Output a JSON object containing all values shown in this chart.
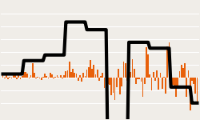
{
  "monthly_returns": [
    0.4,
    -0.1,
    0.5,
    -0.3,
    0.1,
    -0.2,
    0.5,
    0.4,
    -0.3,
    0.3,
    -0.3,
    0.2,
    0.9,
    0.9,
    0.6,
    -0.2,
    0.3,
    2.2,
    0.7,
    -0.1,
    0.1,
    -0.1,
    -0.4,
    0.1,
    0.6,
    0.2,
    -0.1,
    0.8,
    0.5,
    -0.1,
    0.1,
    0.4,
    0.1,
    0.3,
    -0.1,
    0.4,
    1.0,
    1.1,
    2.5,
    0.9,
    1.4,
    0.8,
    0.6,
    -0.5,
    0.4,
    -0.6,
    0.7,
    0.2,
    1.3,
    1.6,
    2.8,
    1.4,
    2.0,
    0.5,
    1.2,
    -0.5,
    0.2,
    0.8,
    -1.6,
    0.2,
    -1.0,
    -1.1,
    -2.8,
    -2.4,
    -3.5,
    -1.5,
    1.4,
    -2.6,
    -1.4,
    2.5,
    2.3,
    -0.5,
    0.5,
    0.9,
    2.9,
    1.4,
    -1.0,
    -0.3,
    -0.3,
    -0.7,
    -3.0,
    -1.0,
    4.8,
    3.6,
    0.5,
    -2.0,
    0.9,
    -0.5,
    1.1,
    -1.9,
    0.8,
    -1.8,
    0.1,
    -2.5,
    4.9,
    5.5,
    -0.3,
    -1.1,
    -1.4,
    -3.0,
    -1.4,
    1.0,
    2.0,
    1.5,
    2.3,
    -3.0,
    1.1,
    -5.2,
    -0.5,
    -1.0,
    -2.5,
    -4.0
  ],
  "annual_returns": [
    0.55,
    0.55,
    0.55,
    0.55,
    0.55,
    0.55,
    0.55,
    0.55,
    0.55,
    0.55,
    0.55,
    0.55,
    2.65,
    2.65,
    2.65,
    2.65,
    2.65,
    2.65,
    2.65,
    2.65,
    2.65,
    2.65,
    2.65,
    2.65,
    3.54,
    3.54,
    3.54,
    3.54,
    3.54,
    3.54,
    3.54,
    3.54,
    3.54,
    3.54,
    3.54,
    3.54,
    8.72,
    8.72,
    8.72,
    8.72,
    8.72,
    8.72,
    8.72,
    8.72,
    8.72,
    8.72,
    8.72,
    8.72,
    7.51,
    7.51,
    7.51,
    7.51,
    7.51,
    7.51,
    7.51,
    7.51,
    7.51,
    7.51,
    7.51,
    7.51,
    -13.01,
    -13.01,
    -13.01,
    -13.01,
    -13.01,
    -13.01,
    -13.01,
    -13.01,
    -13.01,
    -13.01,
    -13.01,
    -13.01,
    5.53,
    5.53,
    5.53,
    5.53,
    5.53,
    5.53,
    5.53,
    5.53,
    5.53,
    5.53,
    5.53,
    5.53,
    4.6,
    4.6,
    4.6,
    4.6,
    4.6,
    4.6,
    4.6,
    4.6,
    4.6,
    4.6,
    4.6,
    4.6,
    -1.5,
    -1.5,
    -1.5,
    -1.5,
    -1.5,
    -1.5,
    -1.5,
    -1.5,
    -1.5,
    -1.5,
    -1.5,
    -1.5,
    -4.0,
    -4.0,
    -4.0,
    -4.0
  ],
  "bar_color": "#E8600A",
  "line_color": "#000000",
  "background_color": "#f0ede8",
  "gridline_color": "#ffffff",
  "ylim": [
    -6.5,
    12.0
  ],
  "line_width": 3.0,
  "bar_width": 0.8
}
